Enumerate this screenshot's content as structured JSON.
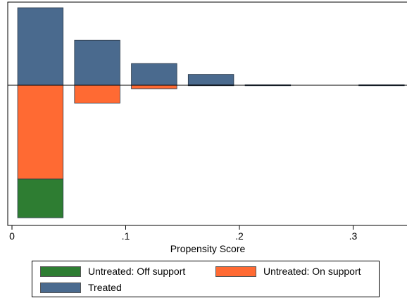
{
  "chart_data": {
    "type": "bar",
    "xlabel": "Propensity Score",
    "ylabel": "",
    "xlim": [
      -0.005,
      0.35
    ],
    "x_ticks": [
      "0",
      ".1",
      ".2",
      ".3"
    ],
    "x_tick_values": [
      0,
      0.1,
      0.2,
      0.3
    ],
    "bin_width": 0.04,
    "bins": [
      {
        "x_start": 0.005,
        "x_end": 0.045,
        "treated": 1.0,
        "untreated_on_support": 1.21,
        "untreated_off_support": 0.5
      },
      {
        "x_start": 0.055,
        "x_end": 0.095,
        "treated": 0.58,
        "untreated_on_support": 0.23,
        "untreated_off_support": 0
      },
      {
        "x_start": 0.105,
        "x_end": 0.145,
        "treated": 0.28,
        "untreated_on_support": 0.045,
        "untreated_off_support": 0
      },
      {
        "x_start": 0.155,
        "x_end": 0.195,
        "treated": 0.14,
        "untreated_on_support": 0,
        "untreated_off_support": 0.012
      },
      {
        "x_start": 0.205,
        "x_end": 0.245,
        "treated": 0,
        "untreated_on_support": 0,
        "untreated_off_support": 0.012
      },
      {
        "x_start": 0.305,
        "x_end": 0.345,
        "treated": 0,
        "untreated_on_support": 0,
        "untreated_off_support": 0.012
      }
    ],
    "series": [
      {
        "name": "Untreated: Off support",
        "color": "#2e7d32",
        "direction": "down"
      },
      {
        "name": "Untreated: On support",
        "color": "#ff6a33",
        "direction": "down"
      },
      {
        "name": "Treated",
        "color": "#4a6a8e",
        "direction": "up"
      }
    ],
    "legend_position": "bottom",
    "grid": false
  },
  "legend": {
    "off_support": "Untreated: Off support",
    "on_support": "Untreated: On support",
    "treated": "Treated"
  }
}
